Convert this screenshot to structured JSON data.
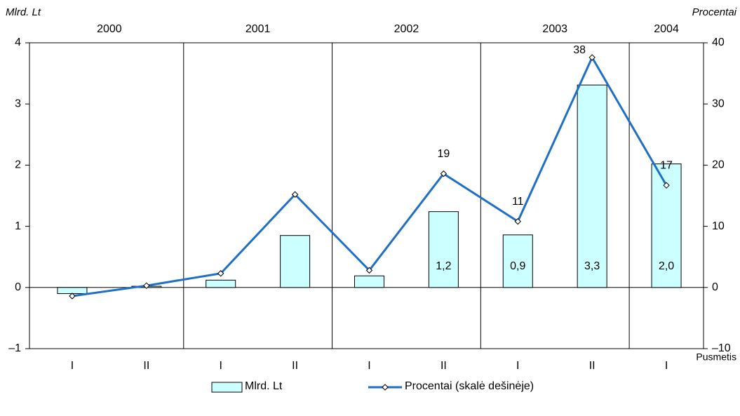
{
  "chart_data": {
    "type": "combo",
    "y_axis_title": "Mlrd. Lt",
    "y2_axis_title": "Procentai",
    "x_axis_title": "Pusmetis",
    "categories": [
      "I",
      "II",
      "I",
      "II",
      "I",
      "II",
      "I",
      "II",
      "I"
    ],
    "groups": {
      "labels": [
        "2000",
        "2001",
        "2002",
        "2003",
        "2004"
      ],
      "spans": [
        2,
        2,
        2,
        2,
        1
      ]
    },
    "ylim": [
      -1,
      4
    ],
    "yticks": [
      {
        "value": -1,
        "label": "–1"
      },
      0,
      1,
      2,
      3,
      4
    ],
    "y2lim": [
      -10,
      40
    ],
    "y2ticks": [
      {
        "value": -10,
        "label": "–10"
      },
      0,
      10,
      20,
      30,
      40
    ],
    "series": [
      {
        "name": "Mlrd. Lt",
        "type": "bar",
        "color": "#ccffff",
        "values": [
          -0.1,
          0.02,
          0.12,
          0.85,
          0.19,
          1.24,
          0.86,
          3.31,
          2.02
        ],
        "value_labels": [
          null,
          null,
          null,
          null,
          null,
          "1,2",
          "0,9",
          "3,3",
          "2,0"
        ]
      },
      {
        "name": "Procentai (skalė dešinėje)",
        "type": "line",
        "axis": "y2",
        "color": "#1f6fc5",
        "values": [
          -1.4,
          0.3,
          2.3,
          15.2,
          2.8,
          18.6,
          10.8,
          37.6,
          16.7
        ],
        "value_labels": [
          null,
          null,
          null,
          null,
          null,
          "19",
          "11",
          "38",
          "17"
        ]
      }
    ]
  }
}
